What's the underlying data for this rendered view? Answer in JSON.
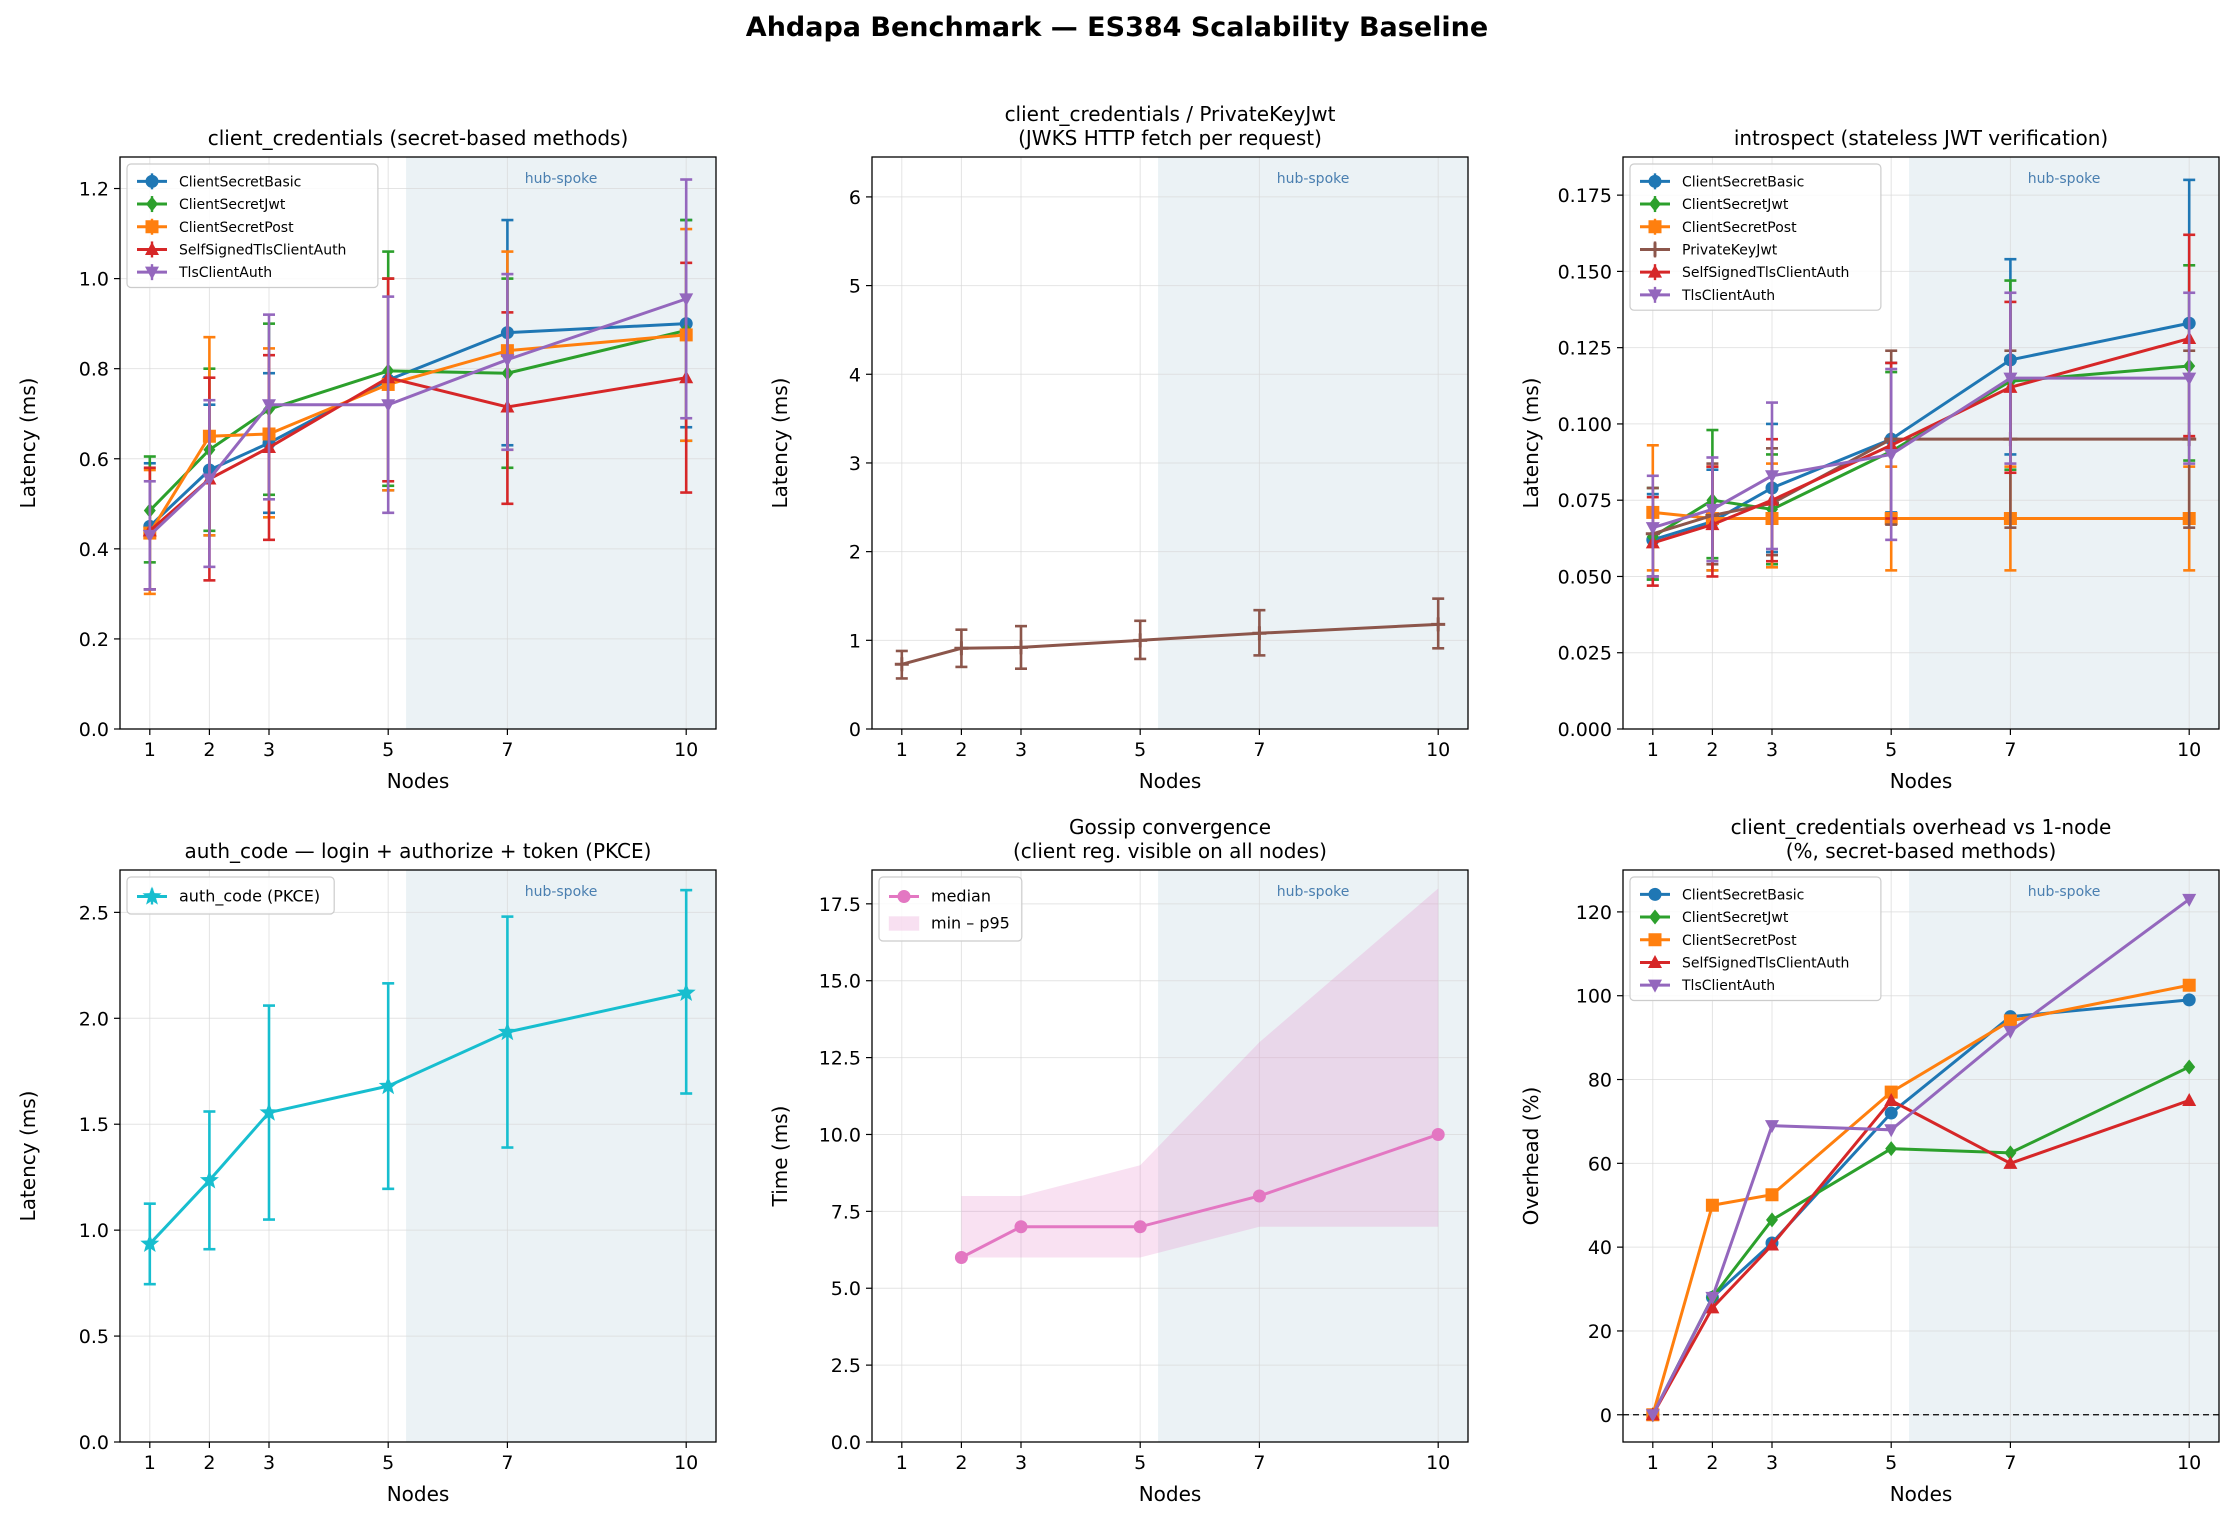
{
  "figure_title": "Ahdapa Benchmark — ES384 Scalability Baseline",
  "colors": {
    "ClientSecretBasic": "#1f77b4",
    "ClientSecretJwt": "#2ca02c",
    "ClientSecretPost": "#ff7f0e",
    "PrivateKeyJwt": "#8c564b",
    "SelfSignedTlsClientAuth": "#d62728",
    "TlsClientAuth": "#9467bd",
    "auth_code": "#17becf",
    "median": "#e377c2",
    "shade": "#dde9ef",
    "grid": "#d9d9d9"
  },
  "chart_data": [
    {
      "type": "line",
      "title": "client_credentials (secret-based methods)",
      "xlabel": "Nodes",
      "ylabel": "Latency (ms)",
      "x": [
        1,
        2,
        3,
        5,
        7,
        10
      ],
      "xlim": [
        0.5,
        10.5
      ],
      "ylim": [
        0,
        1.27
      ],
      "yticks": [
        0.0,
        0.2,
        0.4,
        0.6,
        0.8,
        1.0,
        1.2
      ],
      "ytick_labels": [
        "0.0",
        "0.2",
        "0.4",
        "0.6",
        "0.8",
        "1.0",
        "1.2"
      ],
      "shaded_region": {
        "from": 5.3,
        "to": 10.5,
        "label": "hub-spoke"
      },
      "legend": "top-left",
      "series": [
        {
          "name": "ClientSecretBasic",
          "color": "#1f77b4",
          "marker": "circle",
          "values": [
            0.45,
            0.575,
            0.635,
            0.775,
            0.88,
            0.9
          ],
          "err_low": [
            0.31,
            0.43,
            0.48,
            0.53,
            0.63,
            0.67
          ],
          "err_high": [
            0.59,
            0.72,
            0.79,
            1.0,
            1.13,
            1.13
          ]
        },
        {
          "name": "ClientSecretJwt",
          "color": "#2ca02c",
          "marker": "diamond",
          "values": [
            0.485,
            0.62,
            0.71,
            0.795,
            0.79,
            0.885
          ],
          "err_low": [
            0.37,
            0.44,
            0.52,
            0.54,
            0.58,
            0.64
          ],
          "err_high": [
            0.605,
            0.8,
            0.9,
            1.06,
            1.0,
            1.13
          ]
        },
        {
          "name": "ClientSecretPost",
          "color": "#ff7f0e",
          "marker": "square",
          "values": [
            0.435,
            0.65,
            0.655,
            0.765,
            0.84,
            0.875
          ],
          "err_low": [
            0.3,
            0.43,
            0.47,
            0.53,
            0.62,
            0.64
          ],
          "err_high": [
            0.575,
            0.87,
            0.845,
            1.0,
            1.06,
            1.11
          ]
        },
        {
          "name": "SelfSignedTlsClientAuth",
          "color": "#d62728",
          "marker": "triangle",
          "values": [
            0.44,
            0.555,
            0.625,
            0.78,
            0.715,
            0.78
          ],
          "err_low": [
            0.31,
            0.33,
            0.42,
            0.55,
            0.5,
            0.525
          ],
          "err_high": [
            0.58,
            0.78,
            0.83,
            1.0,
            0.925,
            1.035
          ]
        },
        {
          "name": "TlsClientAuth",
          "color": "#9467bd",
          "marker": "triangle-down",
          "values": [
            0.43,
            0.555,
            0.72,
            0.72,
            0.82,
            0.955
          ],
          "err_low": [
            0.31,
            0.36,
            0.51,
            0.48,
            0.62,
            0.69
          ],
          "err_high": [
            0.55,
            0.73,
            0.92,
            0.96,
            1.01,
            1.22
          ]
        }
      ]
    },
    {
      "type": "line",
      "title": "client_credentials / PrivateKeyJwt",
      "subtitle": "(JWKS HTTP fetch per request)",
      "xlabel": "Nodes",
      "ylabel": "Latency (ms)",
      "x": [
        1,
        2,
        3,
        5,
        7,
        10
      ],
      "xlim": [
        0.5,
        10.5
      ],
      "ylim": [
        0,
        6.45
      ],
      "yticks": [
        0,
        1,
        2,
        3,
        4,
        5,
        6
      ],
      "ytick_labels": [
        "0",
        "1",
        "2",
        "3",
        "4",
        "5",
        "6"
      ],
      "shaded_region": {
        "from": 5.3,
        "to": 10.5,
        "label": "hub-spoke"
      },
      "series": [
        {
          "name": "PrivateKeyJwt",
          "color": "#8c564b",
          "marker": "plus",
          "values": [
            0.73,
            0.91,
            0.92,
            1.0,
            1.08,
            1.18
          ],
          "err_low": [
            0.57,
            0.7,
            0.68,
            0.79,
            0.83,
            0.91
          ],
          "err_high": [
            0.88,
            1.12,
            1.16,
            1.22,
            1.34,
            1.47
          ]
        }
      ]
    },
    {
      "type": "line",
      "title": "introspect (stateless JWT verification)",
      "xlabel": "Nodes",
      "ylabel": "Latency (ms)",
      "x": [
        1,
        2,
        3,
        5,
        7,
        10
      ],
      "xlim": [
        0.5,
        10.5
      ],
      "ylim": [
        0,
        0.1875
      ],
      "yticks": [
        0.0,
        0.025,
        0.05,
        0.075,
        0.1,
        0.125,
        0.15,
        0.175
      ],
      "ytick_labels": [
        "0.000",
        "0.025",
        "0.050",
        "0.075",
        "0.100",
        "0.125",
        "0.150",
        "0.175"
      ],
      "shaded_region": {
        "from": 5.3,
        "to": 10.5,
        "label": "hub-spoke"
      },
      "legend": "top-left",
      "series": [
        {
          "name": "ClientSecretBasic",
          "color": "#1f77b4",
          "marker": "circle",
          "values": [
            0.062,
            0.068,
            0.079,
            0.095,
            0.121,
            0.133
          ],
          "err_low": [
            0.049,
            0.052,
            0.058,
            0.071,
            0.09,
            0.095
          ],
          "err_high": [
            0.077,
            0.085,
            0.1,
            0.12,
            0.154,
            0.18
          ]
        },
        {
          "name": "ClientSecretJwt",
          "color": "#2ca02c",
          "marker": "diamond",
          "values": [
            0.063,
            0.075,
            0.072,
            0.091,
            0.114,
            0.119
          ],
          "err_low": [
            0.049,
            0.056,
            0.054,
            0.068,
            0.085,
            0.088
          ],
          "err_high": [
            0.079,
            0.098,
            0.09,
            0.117,
            0.147,
            0.152
          ]
        },
        {
          "name": "ClientSecretPost",
          "color": "#ff7f0e",
          "marker": "square",
          "values": [
            0.071,
            0.069,
            0.069,
            0.069,
            0.069,
            0.069
          ],
          "err_low": [
            0.052,
            0.052,
            0.053,
            0.052,
            0.052,
            0.052
          ],
          "err_high": [
            0.093,
            0.086,
            0.087,
            0.086,
            0.086,
            0.086
          ]
        },
        {
          "name": "PrivateKeyJwt",
          "color": "#8c564b",
          "marker": "plus",
          "values": [
            0.064,
            0.07,
            0.074,
            0.095,
            0.095,
            0.095
          ],
          "err_low": [
            0.05,
            0.054,
            0.057,
            0.067,
            0.066,
            0.066
          ],
          "err_high": [
            0.079,
            0.087,
            0.092,
            0.124,
            0.124,
            0.124
          ]
        },
        {
          "name": "SelfSignedTlsClientAuth",
          "color": "#d62728",
          "marker": "triangle",
          "values": [
            0.061,
            0.067,
            0.075,
            0.093,
            0.112,
            0.128
          ],
          "err_low": [
            0.047,
            0.05,
            0.055,
            0.069,
            0.084,
            0.096
          ],
          "err_high": [
            0.076,
            0.086,
            0.095,
            0.12,
            0.14,
            0.162
          ]
        },
        {
          "name": "TlsClientAuth",
          "color": "#9467bd",
          "marker": "triangle-down",
          "values": [
            0.066,
            0.072,
            0.083,
            0.09,
            0.115,
            0.115
          ],
          "err_low": [
            0.05,
            0.055,
            0.059,
            0.062,
            0.087,
            0.087
          ],
          "err_high": [
            0.083,
            0.089,
            0.107,
            0.118,
            0.143,
            0.143
          ]
        }
      ]
    },
    {
      "type": "line",
      "title": "auth_code — login + authorize + token (PKCE)",
      "xlabel": "Nodes",
      "ylabel": "Latency (ms)",
      "x": [
        1,
        2,
        3,
        5,
        7,
        10
      ],
      "xlim": [
        0.5,
        10.5
      ],
      "ylim": [
        0,
        2.7
      ],
      "yticks": [
        0.0,
        0.5,
        1.0,
        1.5,
        2.0,
        2.5
      ],
      "ytick_labels": [
        "0.0",
        "0.5",
        "1.0",
        "1.5",
        "2.0",
        "2.5"
      ],
      "shaded_region": {
        "from": 5.3,
        "to": 10.5,
        "label": "hub-spoke"
      },
      "legend": "top-left",
      "series": [
        {
          "name": "auth_code (PKCE)",
          "color": "#17becf",
          "marker": "star",
          "values": [
            0.935,
            1.235,
            1.555,
            1.68,
            1.935,
            2.12
          ],
          "err_low": [
            0.745,
            0.91,
            1.05,
            1.195,
            1.39,
            1.645
          ],
          "err_high": [
            1.125,
            1.56,
            2.06,
            2.165,
            2.48,
            2.605
          ]
        }
      ]
    },
    {
      "type": "area",
      "title": "Gossip convergence",
      "subtitle": "(client reg. visible on all nodes)",
      "xlabel": "Nodes",
      "ylabel": "Time (ms)",
      "x": [
        2,
        3,
        5,
        7,
        10
      ],
      "xticks": [
        1,
        2,
        3,
        5,
        7,
        10
      ],
      "xlim": [
        0.5,
        10.5
      ],
      "ylim": [
        0,
        18.6
      ],
      "yticks": [
        0.0,
        2.5,
        5.0,
        7.5,
        10.0,
        12.5,
        15.0,
        17.5
      ],
      "ytick_labels": [
        "0.0",
        "2.5",
        "5.0",
        "7.5",
        "10.0",
        "12.5",
        "15.0",
        "17.5"
      ],
      "shaded_region": {
        "from": 5.3,
        "to": 10.5,
        "label": "hub-spoke"
      },
      "legend": "top-left",
      "series": [
        {
          "name": "median",
          "color": "#e377c2",
          "marker": "circle",
          "values": [
            6,
            7,
            7,
            8,
            10
          ]
        }
      ],
      "band": {
        "name": "min – p95",
        "color": "#e377c2",
        "low": [
          6,
          6,
          6,
          7,
          7
        ],
        "high": [
          8,
          8,
          9,
          13,
          18
        ]
      }
    },
    {
      "type": "line",
      "title": "client_credentials overhead vs 1-node",
      "subtitle": "(%, secret-based methods)",
      "xlabel": "Nodes",
      "ylabel": "Overhead (%)",
      "x": [
        1,
        2,
        3,
        5,
        7,
        10
      ],
      "xlim": [
        0.5,
        10.5
      ],
      "ylim": [
        -6.5,
        130
      ],
      "yticks": [
        0,
        20,
        40,
        60,
        80,
        100,
        120
      ],
      "ytick_labels": [
        "0",
        "20",
        "40",
        "60",
        "80",
        "100",
        "120"
      ],
      "shaded_region": {
        "from": 5.3,
        "to": 10.5,
        "label": "hub-spoke"
      },
      "zero_line": true,
      "legend": "top-left",
      "series": [
        {
          "name": "ClientSecretBasic",
          "color": "#1f77b4",
          "marker": "circle",
          "values": [
            0,
            28,
            41,
            72,
            95,
            99
          ]
        },
        {
          "name": "ClientSecretJwt",
          "color": "#2ca02c",
          "marker": "diamond",
          "values": [
            0,
            28,
            46.5,
            63.5,
            62.5,
            83
          ]
        },
        {
          "name": "ClientSecretPost",
          "color": "#ff7f0e",
          "marker": "square",
          "values": [
            0,
            50,
            52.5,
            77,
            94,
            102.5
          ]
        },
        {
          "name": "SelfSignedTlsClientAuth",
          "color": "#d62728",
          "marker": "triangle",
          "values": [
            0,
            25.5,
            40.5,
            75,
            60,
            75
          ]
        },
        {
          "name": "TlsClientAuth",
          "color": "#9467bd",
          "marker": "triangle-down",
          "values": [
            0,
            28,
            69,
            68,
            91.5,
            123
          ]
        }
      ]
    }
  ]
}
